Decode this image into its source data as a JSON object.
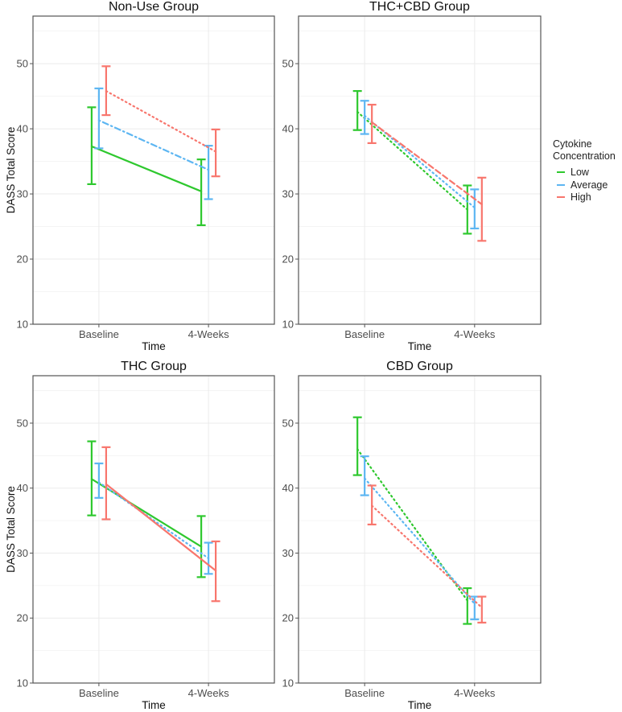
{
  "chart_data": [
    {
      "type": "line",
      "title": "Non-Use Group",
      "xlabel": "Time",
      "ylabel": "DASS Total Score",
      "categories": [
        "Baseline",
        "4-Weeks"
      ],
      "ylim": [
        10,
        57.3
      ],
      "yticks": [
        10,
        20,
        30,
        40,
        50
      ],
      "series": [
        {
          "name": "Low",
          "linetype": "solid",
          "mean": [
            37.3,
            30.4
          ],
          "lower": [
            31.5,
            25.2
          ],
          "upper": [
            43.3,
            35.3
          ]
        },
        {
          "name": "Average",
          "linetype": "dotdash",
          "mean": [
            41.3,
            33.7
          ],
          "lower": [
            37.0,
            29.2
          ],
          "upper": [
            46.2,
            37.4
          ]
        },
        {
          "name": "High",
          "linetype": "dotted",
          "mean": [
            45.8,
            36.5
          ],
          "lower": [
            42.1,
            32.7
          ],
          "upper": [
            49.6,
            39.9
          ]
        }
      ]
    },
    {
      "type": "line",
      "title": "THC+CBD Group",
      "xlabel": "Time",
      "ylabel": "",
      "categories": [
        "Baseline",
        "4-Weeks"
      ],
      "ylim": [
        10,
        57.3
      ],
      "yticks": [
        10,
        20,
        30,
        40,
        50
      ],
      "series": [
        {
          "name": "Low",
          "linetype": "dotted",
          "mean": [
            42.6,
            27.6
          ],
          "lower": [
            39.8,
            23.9
          ],
          "upper": [
            45.8,
            31.3
          ]
        },
        {
          "name": "Average",
          "linetype": "dotted",
          "mean": [
            42.0,
            27.9
          ],
          "lower": [
            39.2,
            24.7
          ],
          "upper": [
            44.3,
            30.7
          ]
        },
        {
          "name": "High",
          "linetype": "dashed",
          "mean": [
            41.0,
            28.4
          ],
          "lower": [
            37.8,
            22.8
          ],
          "upper": [
            43.7,
            32.5
          ]
        }
      ]
    },
    {
      "type": "line",
      "title": "THC Group",
      "xlabel": "Time",
      "ylabel": "DASS Total Score",
      "categories": [
        "Baseline",
        "4-Weeks"
      ],
      "ylim": [
        10,
        57.3
      ],
      "yticks": [
        10,
        20,
        30,
        40,
        50
      ],
      "series": [
        {
          "name": "Low",
          "linetype": "solid",
          "mean": [
            41.4,
            31.0
          ],
          "lower": [
            35.8,
            26.3
          ],
          "upper": [
            47.2,
            35.7
          ]
        },
        {
          "name": "Average",
          "linetype": "dotted",
          "mean": [
            40.9,
            29.2
          ],
          "lower": [
            38.5,
            26.8
          ],
          "upper": [
            43.8,
            31.6
          ]
        },
        {
          "name": "High",
          "linetype": "solid",
          "mean": [
            40.6,
            27.3
          ],
          "lower": [
            35.2,
            22.6
          ],
          "upper": [
            46.3,
            31.8
          ]
        }
      ]
    },
    {
      "type": "line",
      "title": "CBD Group",
      "xlabel": "Time",
      "ylabel": "",
      "categories": [
        "Baseline",
        "4-Weeks"
      ],
      "ylim": [
        10,
        57.3
      ],
      "yticks": [
        10,
        20,
        30,
        40,
        50
      ],
      "series": [
        {
          "name": "Low",
          "linetype": "dotted",
          "mean": [
            46.0,
            22.7
          ],
          "lower": [
            42.0,
            19.1
          ],
          "upper": [
            50.9,
            24.6
          ]
        },
        {
          "name": "Average",
          "linetype": "dotted",
          "mean": [
            41.5,
            22.2
          ],
          "lower": [
            38.9,
            19.8
          ],
          "upper": [
            44.9,
            23.3
          ]
        },
        {
          "name": "High",
          "linetype": "dotted",
          "mean": [
            37.3,
            21.6
          ],
          "lower": [
            34.4,
            19.3
          ],
          "upper": [
            40.4,
            23.3
          ]
        }
      ]
    }
  ],
  "legend": {
    "title_line1": "Cytokine",
    "title_line2": "Concentration",
    "placement": "right",
    "items": [
      "Low",
      "Average",
      "High"
    ]
  },
  "colors": {
    "Low": "#2ec82e",
    "Average": "#5db6f2",
    "High": "#f8766d"
  }
}
